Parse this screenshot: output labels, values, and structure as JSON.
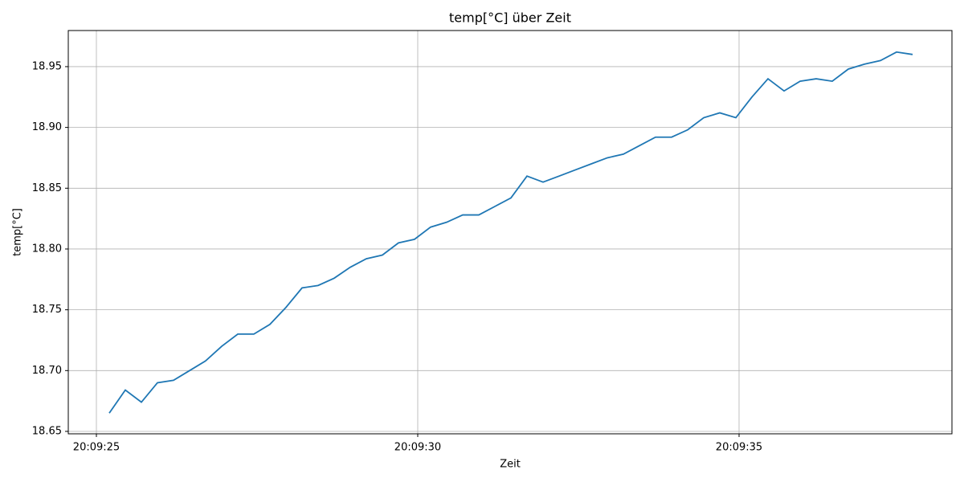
{
  "chart_data": {
    "type": "line",
    "title": "temp[°C] über Zeit",
    "x_label": "Zeit",
    "y_label": "temp[°C]",
    "x": [
      72565.2,
      72565.45,
      72565.7,
      72565.95,
      72566.2,
      72566.45,
      72566.7,
      72566.95,
      72567.2,
      72567.45,
      72567.7,
      72567.95,
      72568.2,
      72568.45,
      72568.7,
      72568.95,
      72569.2,
      72569.45,
      72569.7,
      72569.95,
      72570.2,
      72570.45,
      72570.7,
      72570.95,
      72571.2,
      72571.45,
      72571.7,
      72571.95,
      72572.2,
      72572.45,
      72572.7,
      72572.95,
      72573.2,
      72573.45,
      72573.7,
      72573.95,
      72574.2,
      72574.45,
      72574.7,
      72574.95,
      72575.2,
      72575.45,
      72575.7,
      72575.95,
      72576.2,
      72576.45,
      72576.7,
      72576.95,
      72577.2,
      72577.45,
      72577.7
    ],
    "values": [
      18.665,
      18.684,
      18.674,
      18.69,
      18.692,
      18.7,
      18.708,
      18.72,
      18.73,
      18.73,
      18.738,
      18.752,
      18.768,
      18.77,
      18.776,
      18.785,
      18.792,
      18.795,
      18.805,
      18.808,
      18.818,
      18.822,
      18.828,
      18.828,
      18.835,
      18.842,
      18.86,
      18.855,
      18.86,
      18.865,
      18.87,
      18.875,
      18.878,
      18.885,
      18.892,
      18.892,
      18.898,
      18.908,
      18.912,
      18.908,
      18.925,
      18.94,
      18.93,
      18.938,
      18.94,
      18.938,
      18.948,
      18.952,
      18.955,
      18.962,
      18.96
    ],
    "color": "#1f77b4",
    "xlim": [
      72564.5625,
      72578.3125
    ],
    "xticks": [
      {
        "value": 72565,
        "label": "20:09:25"
      },
      {
        "value": 72570,
        "label": "20:09:30"
      },
      {
        "value": 72575,
        "label": "20:09:35"
      }
    ],
    "ylim": [
      18.648,
      18.9797
    ],
    "yticks": [
      18.65,
      {
        "value": 18.7,
        "label": "18.70"
      },
      18.75,
      {
        "value": 18.8,
        "label": "18.80"
      },
      18.85,
      {
        "value": 18.9,
        "label": "18.90"
      },
      18.95
    ],
    "grid": true
  }
}
